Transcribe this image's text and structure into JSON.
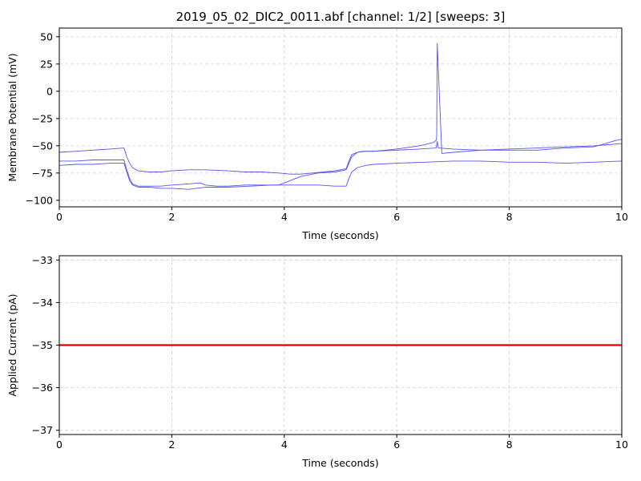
{
  "figure": {
    "title": "2019_05_02_DIC2_0011.abf [channel: 1/2] [sweeps: 3]"
  },
  "chart_data": [
    {
      "type": "line",
      "title": "2019_05_02_DIC2_0011.abf [channel: 1/2] [sweeps: 3]",
      "xlabel": "Time (seconds)",
      "ylabel": "Membrane Potential (mV)",
      "xlim": [
        0,
        10
      ],
      "ylim": [
        -106,
        58
      ],
      "xticks": [
        0,
        2,
        4,
        6,
        8,
        10
      ],
      "yticks": [
        -100,
        -75,
        -50,
        -25,
        0,
        25,
        50
      ],
      "grid": true,
      "series_color": "#5555ee",
      "series": [
        {
          "x": [
            0,
            0.3,
            0.6,
            0.9,
            1.15,
            1.2,
            1.25,
            1.3,
            1.4,
            1.6,
            1.8,
            2.0,
            2.3,
            2.6,
            3.0,
            3.3,
            3.6,
            3.9,
            4.1,
            4.3,
            4.5,
            4.7,
            4.9,
            5.1,
            5.15,
            5.2,
            5.3,
            5.4,
            5.6,
            6.0,
            6.4,
            6.7,
            6.72,
            6.74,
            7.0,
            7.5,
            8.0,
            8.5,
            9.0,
            9.5,
            10
          ],
          "y": [
            -56,
            -55,
            -54,
            -53,
            -52,
            -60,
            -66,
            -70,
            -73,
            -74,
            -74,
            -73,
            -72,
            -72,
            -73,
            -74,
            -74,
            -75,
            -76,
            -76,
            -75,
            -74,
            -73,
            -71,
            -64,
            -58,
            -56,
            -55,
            -55,
            -54,
            -53,
            -52,
            -46,
            -52,
            -53,
            -54,
            -53,
            -52,
            -51,
            -50,
            -48
          ]
        },
        {
          "x": [
            0,
            0.3,
            0.6,
            0.9,
            1.15,
            1.2,
            1.25,
            1.3,
            1.4,
            1.6,
            1.8,
            2.0,
            2.3,
            2.5,
            2.6,
            2.8,
            3.0,
            3.3,
            3.6,
            3.9,
            4.1,
            4.3,
            4.6,
            4.9,
            5.1,
            5.15,
            5.2,
            5.3,
            5.45,
            5.6,
            6.0,
            6.4,
            6.65,
            6.7,
            6.71,
            6.72,
            6.8,
            7.0,
            7.5,
            8.0,
            8.5,
            9.0,
            9.5,
            9.9,
            10
          ],
          "y": [
            -64,
            -64,
            -63,
            -63,
            -63,
            -72,
            -80,
            -85,
            -87,
            -87,
            -87,
            -86,
            -85,
            -84,
            -86,
            -87,
            -87,
            -86,
            -86,
            -86,
            -82,
            -78,
            -75,
            -74,
            -72,
            -66,
            -60,
            -56,
            -55,
            -55,
            -53,
            -50,
            -47,
            -45,
            -42,
            44,
            -57,
            -56,
            -54,
            -54,
            -54,
            -52,
            -51,
            -45,
            -44
          ]
        },
        {
          "x": [
            0,
            0.3,
            0.6,
            0.9,
            1.15,
            1.2,
            1.25,
            1.3,
            1.4,
            1.6,
            1.8,
            2.0,
            2.3,
            2.6,
            3.0,
            3.4,
            3.8,
            4.2,
            4.6,
            4.9,
            5.1,
            5.15,
            5.2,
            5.3,
            5.45,
            5.6,
            6.0,
            6.5,
            7.0,
            7.5,
            8.0,
            8.5,
            9.0,
            9.5,
            10
          ],
          "y": [
            -68,
            -67,
            -67,
            -66,
            -66,
            -74,
            -82,
            -86,
            -88,
            -88,
            -89,
            -89,
            -90,
            -88,
            -88,
            -87,
            -86,
            -86,
            -86,
            -87,
            -87,
            -80,
            -74,
            -70,
            -68,
            -67,
            -66,
            -65,
            -64,
            -64,
            -65,
            -65,
            -66,
            -65,
            -64
          ]
        }
      ]
    },
    {
      "type": "line",
      "title": "",
      "xlabel": "Time (seconds)",
      "ylabel": "Applied Current (pA)",
      "xlim": [
        0,
        10
      ],
      "ylim": [
        -37.1,
        -32.9
      ],
      "xticks": [
        0,
        2,
        4,
        6,
        8,
        10
      ],
      "yticks": [
        -37,
        -36,
        -35,
        -34,
        -33
      ],
      "grid": true,
      "series_color": "#dd0000",
      "series": [
        {
          "x": [
            0,
            10
          ],
          "y": [
            -35,
            -35
          ]
        }
      ]
    }
  ]
}
